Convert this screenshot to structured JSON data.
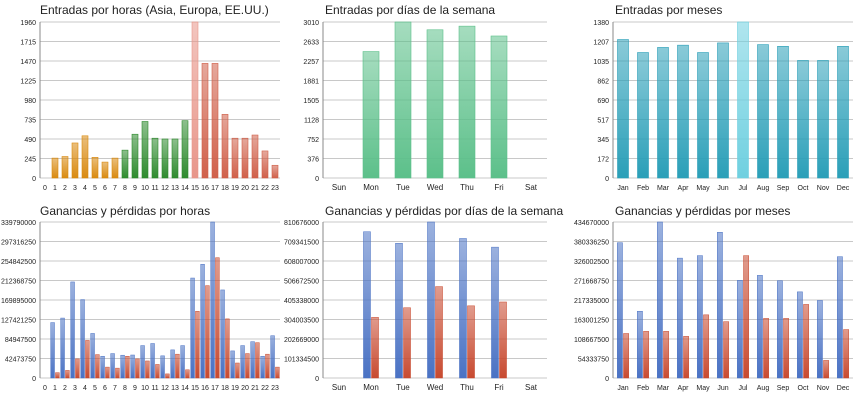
{
  "colors": {
    "hour_asia": "#d98a10",
    "hour_europe": "#2e8b2e",
    "hour_usa": "#d0604a",
    "hour_peak": "#e8968a",
    "weekday": "#5cc08a",
    "month": "#2a9fb8",
    "month_peak": "#6fd0e0",
    "gain": "#4a72c4",
    "loss": "#c84a30",
    "grid": "#c8c8c8"
  },
  "chart_data": [
    {
      "type": "bar",
      "title": "Entradas por horas (Asia, Europa, EE.UU.)",
      "categories": [
        "0",
        "1",
        "2",
        "3",
        "4",
        "5",
        "6",
        "7",
        "8",
        "9",
        "10",
        "11",
        "12",
        "13",
        "14",
        "15",
        "16",
        "17",
        "18",
        "19",
        "20",
        "21",
        "22",
        "23"
      ],
      "values": [
        0,
        250,
        270,
        440,
        530,
        260,
        200,
        250,
        350,
        550,
        710,
        500,
        490,
        490,
        720,
        1960,
        1440,
        1440,
        800,
        500,
        500,
        540,
        340,
        160
      ],
      "yticks": [
        "0",
        "245",
        "490",
        "735",
        "980",
        "1225",
        "1470",
        "1715",
        "1960"
      ],
      "ylim": [
        0,
        1960
      ],
      "grid": true
    },
    {
      "type": "bar",
      "title": "Entradas por días de la semana",
      "categories": [
        "Sun",
        "Mon",
        "Tue",
        "Wed",
        "Thu",
        "Fri",
        "Sat"
      ],
      "values": [
        0,
        2440,
        3010,
        2860,
        2930,
        2740,
        0
      ],
      "yticks": [
        "0",
        "376",
        "752",
        "1128",
        "1505",
        "1881",
        "2257",
        "2633",
        "3010"
      ],
      "ylim": [
        0,
        3010
      ],
      "grid": true
    },
    {
      "type": "bar",
      "title": "Entradas por meses",
      "categories": [
        "Jan",
        "Feb",
        "Mar",
        "Apr",
        "May",
        "Jun",
        "Jul",
        "Aug",
        "Sep",
        "Oct",
        "Nov",
        "Dec"
      ],
      "values": [
        1225,
        1110,
        1155,
        1175,
        1110,
        1195,
        1380,
        1180,
        1165,
        1040,
        1040,
        1165
      ],
      "yticks": [
        "0",
        "172",
        "345",
        "517",
        "690",
        "862",
        "1035",
        "1207",
        "1380"
      ],
      "ylim": [
        0,
        1380
      ],
      "grid": true
    },
    {
      "type": "bar",
      "title": "Ganancias y pérdidas por horas",
      "categories": [
        "0",
        "1",
        "2",
        "3",
        "4",
        "5",
        "6",
        "7",
        "8",
        "9",
        "10",
        "11",
        "12",
        "13",
        "14",
        "15",
        "16",
        "17",
        "18",
        "19",
        "20",
        "21",
        "22",
        "23"
      ],
      "series": [
        {
          "values": [
            0,
            270000000,
            292000000,
            468000000,
            382000000,
            217000000,
            106000000,
            119000000,
            111000000,
            112000000,
            158000000,
            168000000,
            108000000,
            137000000,
            158000000,
            487000000,
            554000000,
            760000000,
            429000000,
            132000000,
            158000000,
            177000000,
            106000000,
            206000000
          ]
        },
        {
          "values": [
            0,
            26000000,
            37000000,
            93000000,
            183000000,
            114000000,
            53000000,
            48000000,
            106000000,
            93000000,
            83000000,
            66000000,
            20000000,
            116000000,
            40000000,
            325000000,
            450000000,
            586000000,
            288000000,
            73000000,
            119000000,
            172000000,
            116000000,
            53000000
          ]
        }
      ],
      "yticks": [
        "0",
        "42473750",
        "84947500",
        "127421250",
        "169895000",
        "212368750",
        "254842500",
        "297316250",
        "339790000"
      ],
      "ylim": [
        0,
        760000000
      ],
      "grid": true
    },
    {
      "type": "bar",
      "title": "Ganancias y pérdidas por días de la semana",
      "categories": [
        "Sun",
        "Mon",
        "Tue",
        "Wed",
        "Thu",
        "Fri",
        "Sat"
      ],
      "series": [
        {
          "values": [
            0,
            760000000,
            700000000,
            810676000,
            725000000,
            680000000,
            0
          ]
        },
        {
          "values": [
            0,
            315000000,
            365000000,
            475000000,
            375000000,
            395000000,
            0
          ]
        }
      ],
      "yticks": [
        "0",
        "101334500",
        "202669000",
        "304003500",
        "405338000",
        "506672500",
        "608007000",
        "709341500",
        "810676000"
      ],
      "ylim": [
        0,
        810676000
      ],
      "grid": true
    },
    {
      "type": "bar",
      "title": "Ganancias y pérdidas por meses",
      "categories": [
        "Jan",
        "Feb",
        "Mar",
        "Apr",
        "May",
        "Jun",
        "Jul",
        "Aug",
        "Sep",
        "Oct",
        "Nov",
        "Dec"
      ],
      "series": [
        {
          "values": [
            377000000,
            186000000,
            434670000,
            334000000,
            341000000,
            406000000,
            272000000,
            286000000,
            271000000,
            240000000,
            216000000,
            338000000
          ]
        },
        {
          "values": [
            124000000,
            130000000,
            130000000,
            116000000,
            176000000,
            157000000,
            341000000,
            166000000,
            166000000,
            205000000,
            49000000,
            135000000
          ]
        }
      ],
      "yticks": [
        "0",
        "54333750",
        "108667500",
        "163001250",
        "217335000",
        "271668750",
        "326002500",
        "380336250",
        "434670000"
      ],
      "ylim": [
        0,
        434670000
      ],
      "grid": true
    }
  ]
}
